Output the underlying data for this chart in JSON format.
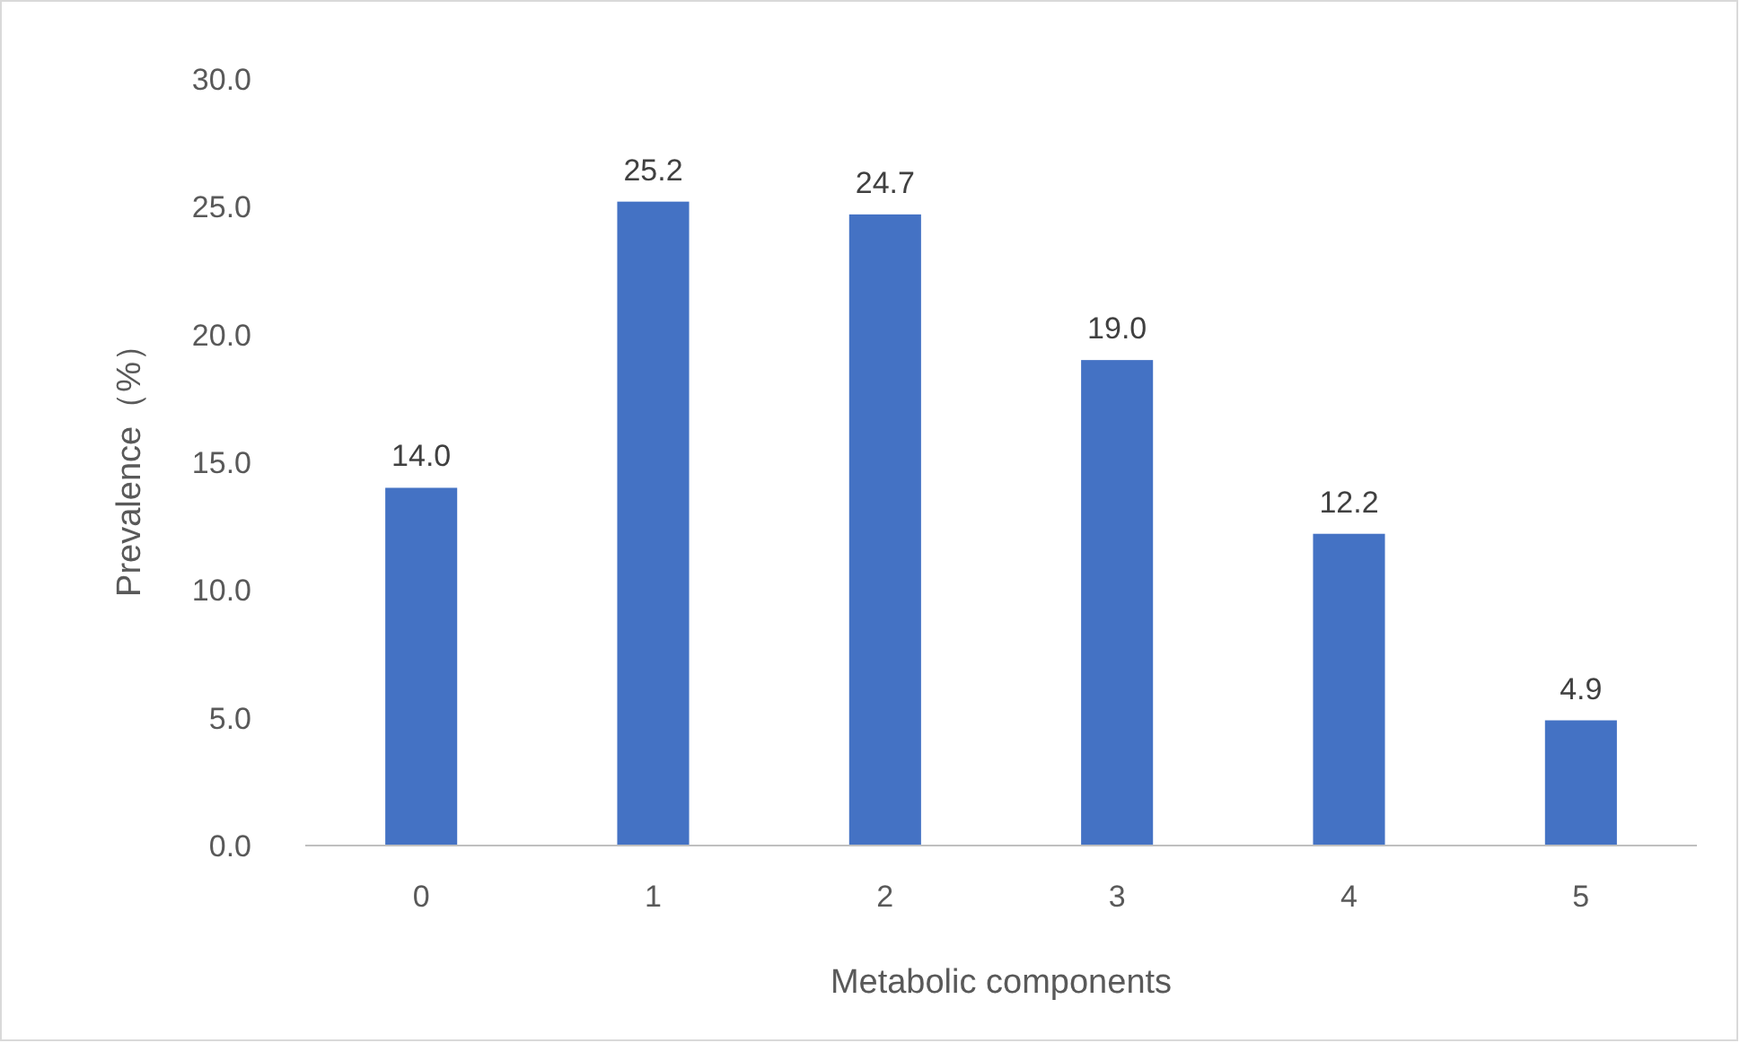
{
  "chart_data": {
    "type": "bar",
    "xlabel": "Metabolic components",
    "ylabel": "Prevalence（%）",
    "categories": [
      "0",
      "1",
      "2",
      "3",
      "4",
      "5"
    ],
    "values": [
      14.0,
      25.2,
      24.7,
      19.0,
      12.2,
      4.9
    ],
    "value_labels": [
      "14.0",
      "25.2",
      "24.7",
      "19.0",
      "12.2",
      "4.9"
    ],
    "color": "#4472c4",
    "ylim": [
      0,
      30
    ],
    "yticks": [
      {
        "value": 0,
        "label": "0.0"
      },
      {
        "value": 5,
        "label": "5.0"
      },
      {
        "value": 10,
        "label": "10.0"
      },
      {
        "value": 15,
        "label": "15.0"
      },
      {
        "value": 20,
        "label": "20.0"
      },
      {
        "value": 25,
        "label": "25.0"
      },
      {
        "value": 30,
        "label": "30.0"
      }
    ],
    "grid": false
  }
}
